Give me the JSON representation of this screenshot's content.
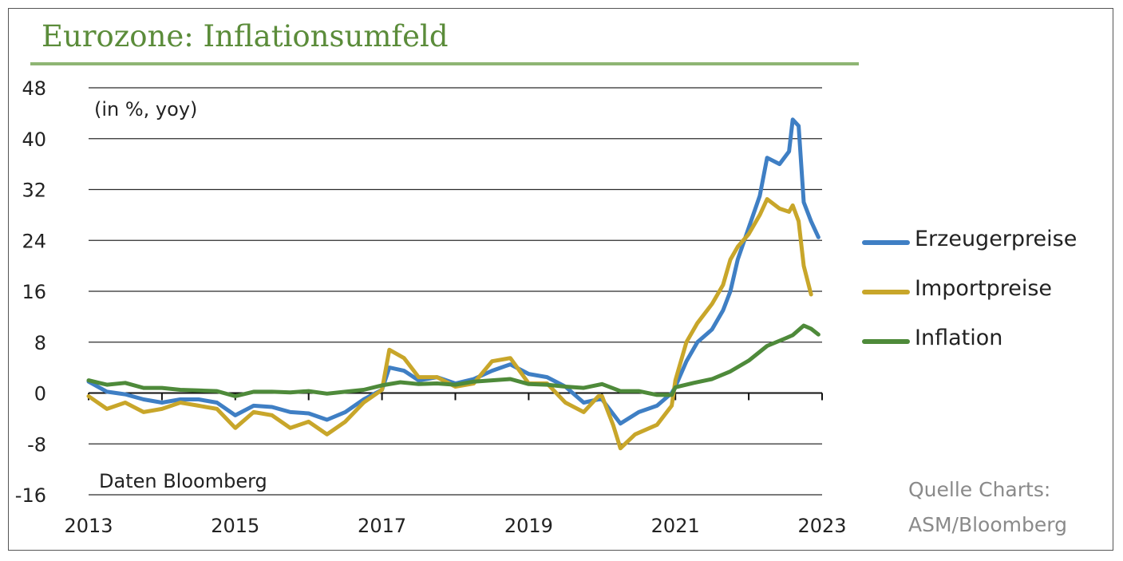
{
  "title": "Eurozone: Inflationsumfeld",
  "source_line1": "Quelle Charts:",
  "source_line2": "ASM/Bloomberg",
  "colors": {
    "title": "#5b8c3a",
    "erzeuger": "#3f7fc4",
    "import": "#c8a62a",
    "inflation": "#4e8a3a"
  },
  "chart_data": {
    "type": "line",
    "title": "Eurozone: Inflationsumfeld",
    "unit_note": "(in %, yoy)",
    "data_note": "Daten Bloomberg",
    "xlim": [
      2013,
      2023
    ],
    "ylim": [
      -16,
      48
    ],
    "x_ticks": [
      "2013",
      "2015",
      "2017",
      "2019",
      "2021",
      "2023"
    ],
    "y_ticks": [
      "48",
      "40",
      "32",
      "24",
      "16",
      "8",
      "0",
      "-8",
      "-16"
    ],
    "grid": "horizontal",
    "legend_position": "right",
    "legend": [
      "Erzeugerpreise",
      "Importpreise",
      "Inflation"
    ],
    "series": [
      {
        "name": "Erzeugerpreise",
        "color": "#3f7fc4",
        "points": [
          [
            2013.0,
            1.8
          ],
          [
            2013.25,
            0.2
          ],
          [
            2013.5,
            -0.2
          ],
          [
            2013.75,
            -1
          ],
          [
            2014.0,
            -1.5
          ],
          [
            2014.25,
            -1
          ],
          [
            2014.5,
            -1
          ],
          [
            2014.75,
            -1.5
          ],
          [
            2015.0,
            -3.5
          ],
          [
            2015.25,
            -2
          ],
          [
            2015.5,
            -2.2
          ],
          [
            2015.75,
            -3
          ],
          [
            2016.0,
            -3.2
          ],
          [
            2016.25,
            -4.2
          ],
          [
            2016.5,
            -3
          ],
          [
            2016.75,
            -1
          ],
          [
            2017.0,
            0.5
          ],
          [
            2017.1,
            4
          ],
          [
            2017.3,
            3.5
          ],
          [
            2017.5,
            2
          ],
          [
            2017.75,
            2.5
          ],
          [
            2018.0,
            1.5
          ],
          [
            2018.25,
            2.2
          ],
          [
            2018.5,
            3.5
          ],
          [
            2018.75,
            4.5
          ],
          [
            2019.0,
            3
          ],
          [
            2019.25,
            2.5
          ],
          [
            2019.5,
            1
          ],
          [
            2019.75,
            -1.5
          ],
          [
            2019.95,
            -1
          ],
          [
            2020.0,
            -1
          ],
          [
            2020.25,
            -4.8
          ],
          [
            2020.5,
            -3
          ],
          [
            2020.75,
            -2
          ],
          [
            2020.95,
            0
          ],
          [
            2021.0,
            1
          ],
          [
            2021.15,
            5
          ],
          [
            2021.3,
            8
          ],
          [
            2021.5,
            10
          ],
          [
            2021.65,
            13
          ],
          [
            2021.75,
            16
          ],
          [
            2021.85,
            21
          ],
          [
            2022.0,
            26
          ],
          [
            2022.15,
            31
          ],
          [
            2022.25,
            37
          ],
          [
            2022.42,
            36
          ],
          [
            2022.55,
            38
          ],
          [
            2022.6,
            43
          ],
          [
            2022.68,
            42
          ],
          [
            2022.75,
            30
          ],
          [
            2022.85,
            27
          ],
          [
            2022.95,
            24.5
          ]
        ]
      },
      {
        "name": "Importpreise",
        "color": "#c8a62a",
        "points": [
          [
            2013.0,
            -0.5
          ],
          [
            2013.25,
            -2.5
          ],
          [
            2013.5,
            -1.5
          ],
          [
            2013.75,
            -3
          ],
          [
            2014.0,
            -2.5
          ],
          [
            2014.25,
            -1.5
          ],
          [
            2014.5,
            -2
          ],
          [
            2014.75,
            -2.5
          ],
          [
            2015.0,
            -5.5
          ],
          [
            2015.25,
            -3
          ],
          [
            2015.5,
            -3.5
          ],
          [
            2015.75,
            -5.5
          ],
          [
            2016.0,
            -4.5
          ],
          [
            2016.25,
            -6.5
          ],
          [
            2016.5,
            -4.5
          ],
          [
            2016.75,
            -1.5
          ],
          [
            2017.0,
            0.5
          ],
          [
            2017.1,
            6.8
          ],
          [
            2017.3,
            5.5
          ],
          [
            2017.5,
            2.5
          ],
          [
            2017.75,
            2.5
          ],
          [
            2018.0,
            1
          ],
          [
            2018.25,
            1.5
          ],
          [
            2018.5,
            5
          ],
          [
            2018.75,
            5.5
          ],
          [
            2019.0,
            1.5
          ],
          [
            2019.25,
            1.5
          ],
          [
            2019.5,
            -1.5
          ],
          [
            2019.75,
            -3
          ],
          [
            2019.95,
            -0.5
          ],
          [
            2020.0,
            -0.5
          ],
          [
            2020.15,
            -5
          ],
          [
            2020.25,
            -8.7
          ],
          [
            2020.45,
            -6.5
          ],
          [
            2020.75,
            -5
          ],
          [
            2020.95,
            -2
          ],
          [
            2021.0,
            2
          ],
          [
            2021.15,
            8
          ],
          [
            2021.3,
            11
          ],
          [
            2021.5,
            14
          ],
          [
            2021.65,
            17
          ],
          [
            2021.75,
            21
          ],
          [
            2021.85,
            23
          ],
          [
            2022.0,
            25
          ],
          [
            2022.15,
            28
          ],
          [
            2022.25,
            30.5
          ],
          [
            2022.42,
            29
          ],
          [
            2022.55,
            28.5
          ],
          [
            2022.6,
            29.5
          ],
          [
            2022.68,
            27
          ],
          [
            2022.75,
            20
          ],
          [
            2022.85,
            15.5
          ]
        ]
      },
      {
        "name": "Inflation",
        "color": "#4e8a3a",
        "points": [
          [
            2013.0,
            2
          ],
          [
            2013.25,
            1.3
          ],
          [
            2013.5,
            1.6
          ],
          [
            2013.75,
            0.8
          ],
          [
            2014.0,
            0.8
          ],
          [
            2014.25,
            0.5
          ],
          [
            2014.5,
            0.4
          ],
          [
            2014.75,
            0.3
          ],
          [
            2015.0,
            -0.5
          ],
          [
            2015.25,
            0.2
          ],
          [
            2015.5,
            0.2
          ],
          [
            2015.75,
            0.1
          ],
          [
            2016.0,
            0.3
          ],
          [
            2016.25,
            -0.1
          ],
          [
            2016.5,
            0.2
          ],
          [
            2016.75,
            0.5
          ],
          [
            2017.0,
            1.2
          ],
          [
            2017.25,
            1.7
          ],
          [
            2017.5,
            1.4
          ],
          [
            2017.75,
            1.5
          ],
          [
            2018.0,
            1.3
          ],
          [
            2018.25,
            1.8
          ],
          [
            2018.5,
            2
          ],
          [
            2018.75,
            2.2
          ],
          [
            2019.0,
            1.4
          ],
          [
            2019.25,
            1.3
          ],
          [
            2019.5,
            1
          ],
          [
            2019.75,
            0.8
          ],
          [
            2020.0,
            1.4
          ],
          [
            2020.25,
            0.3
          ],
          [
            2020.5,
            0.3
          ],
          [
            2020.75,
            -0.3
          ],
          [
            2020.95,
            -0.3
          ],
          [
            2021.0,
            0.9
          ],
          [
            2021.25,
            1.6
          ],
          [
            2021.5,
            2.2
          ],
          [
            2021.75,
            3.4
          ],
          [
            2022.0,
            5.1
          ],
          [
            2022.25,
            7.4
          ],
          [
            2022.5,
            8.6
          ],
          [
            2022.6,
            9.1
          ],
          [
            2022.75,
            10.6
          ],
          [
            2022.85,
            10.1
          ],
          [
            2022.95,
            9.2
          ]
        ]
      }
    ]
  }
}
